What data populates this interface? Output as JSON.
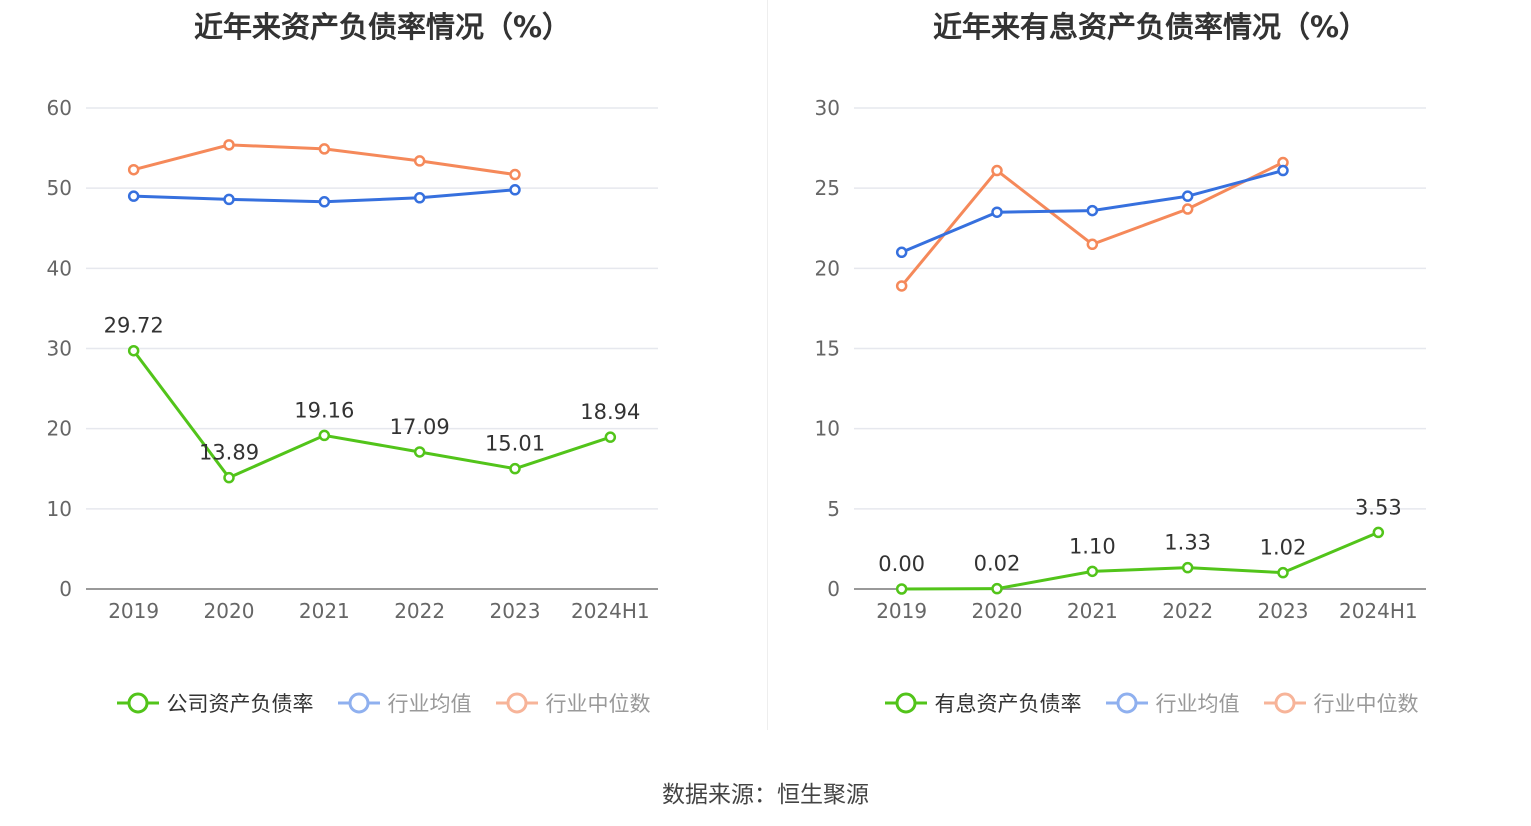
{
  "chart_data": [
    {
      "type": "line",
      "title": "近年来资产负债率情况（%）",
      "categories": [
        "2019",
        "2020",
        "2021",
        "2022",
        "2023",
        "2024H1"
      ],
      "ylim": [
        0,
        60
      ],
      "yticks": [
        0,
        10,
        20,
        30,
        40,
        50,
        60
      ],
      "grid": true,
      "legend_position": "bottom",
      "series": [
        {
          "name": "公司资产负债率",
          "color": "#52c41a",
          "values": [
            29.72,
            13.89,
            19.16,
            17.09,
            15.01,
            18.94
          ],
          "labels": [
            "29.72",
            "13.89",
            "19.16",
            "17.09",
            "15.01",
            "18.94"
          ]
        },
        {
          "name": "行业均值",
          "color": "#3670de",
          "values": [
            49.0,
            48.6,
            48.3,
            48.8,
            49.8,
            null
          ]
        },
        {
          "name": "行业中位数",
          "color": "#f5895a",
          "values": [
            52.3,
            55.4,
            54.9,
            53.4,
            51.7,
            null
          ]
        }
      ]
    },
    {
      "type": "line",
      "title": "近年来有息资产负债率情况（%）",
      "categories": [
        "2019",
        "2020",
        "2021",
        "2022",
        "2023",
        "2024H1"
      ],
      "ylim": [
        0,
        30
      ],
      "yticks": [
        0,
        5,
        10,
        15,
        20,
        25,
        30
      ],
      "grid": true,
      "legend_position": "bottom",
      "series": [
        {
          "name": "有息资产负债率",
          "color": "#52c41a",
          "values": [
            0.0,
            0.02,
            1.1,
            1.33,
            1.02,
            3.53
          ],
          "labels": [
            "0.00",
            "0.02",
            "1.10",
            "1.33",
            "1.02",
            "3.53"
          ]
        },
        {
          "name": "行业均值",
          "color": "#3670de",
          "values": [
            21.0,
            23.5,
            23.6,
            24.5,
            26.1,
            null
          ]
        },
        {
          "name": "行业中位数",
          "color": "#f5895a",
          "values": [
            18.9,
            26.1,
            21.5,
            23.7,
            26.6,
            null
          ]
        }
      ]
    }
  ],
  "footer": "数据来源：恒生聚源"
}
